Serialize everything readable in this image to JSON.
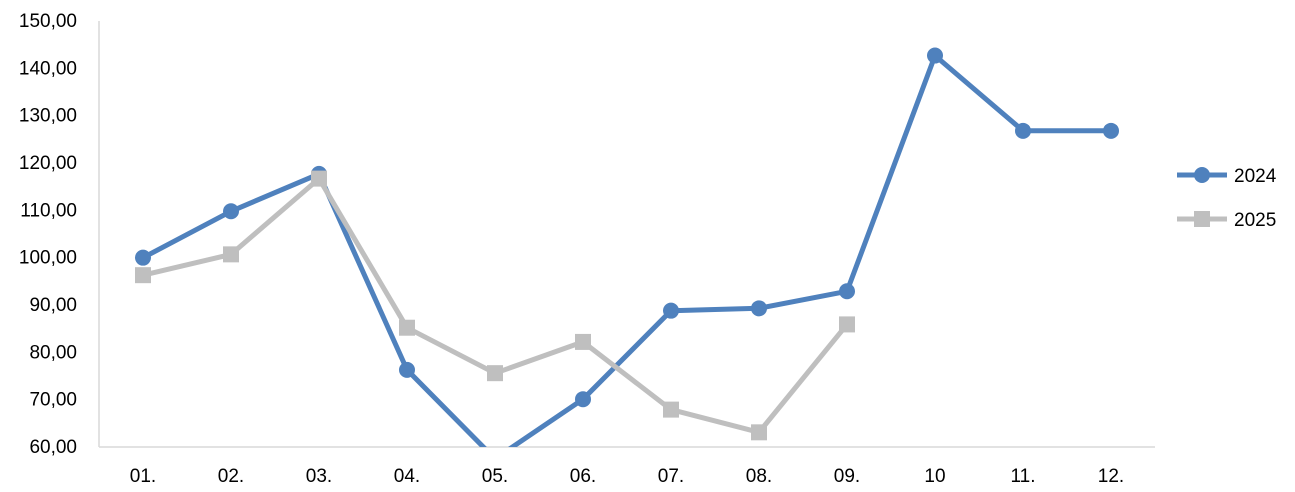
{
  "chart_data": {
    "type": "line",
    "title": "",
    "xlabel": "",
    "ylabel": "",
    "categories": [
      "01.",
      "02.",
      "03.",
      "04.",
      "05.",
      "06.",
      "07.",
      "08.",
      "09.",
      "10",
      "11.",
      "12."
    ],
    "yticks": [
      "60,00",
      "70,00",
      "80,00",
      "90,00",
      "100,00",
      "110,00",
      "120,00",
      "130,00",
      "140,00",
      "150,00"
    ],
    "ylim": [
      60,
      150
    ],
    "grid": false,
    "legend": "right",
    "series": [
      {
        "name": "2024",
        "color": "#4F81BD",
        "marker": "circle",
        "values": [
          100,
          109.8,
          117.7,
          76.3,
          57.5,
          70.1,
          88.8,
          89.3,
          92.9,
          142.7,
          126.8,
          126.8
        ]
      },
      {
        "name": "2025",
        "color": "#BFBFBF",
        "marker": "square",
        "values": [
          96.3,
          100.7,
          116.7,
          85.2,
          75.6,
          82.2,
          67.9,
          63.1,
          85.9,
          null,
          null,
          null
        ]
      }
    ]
  }
}
